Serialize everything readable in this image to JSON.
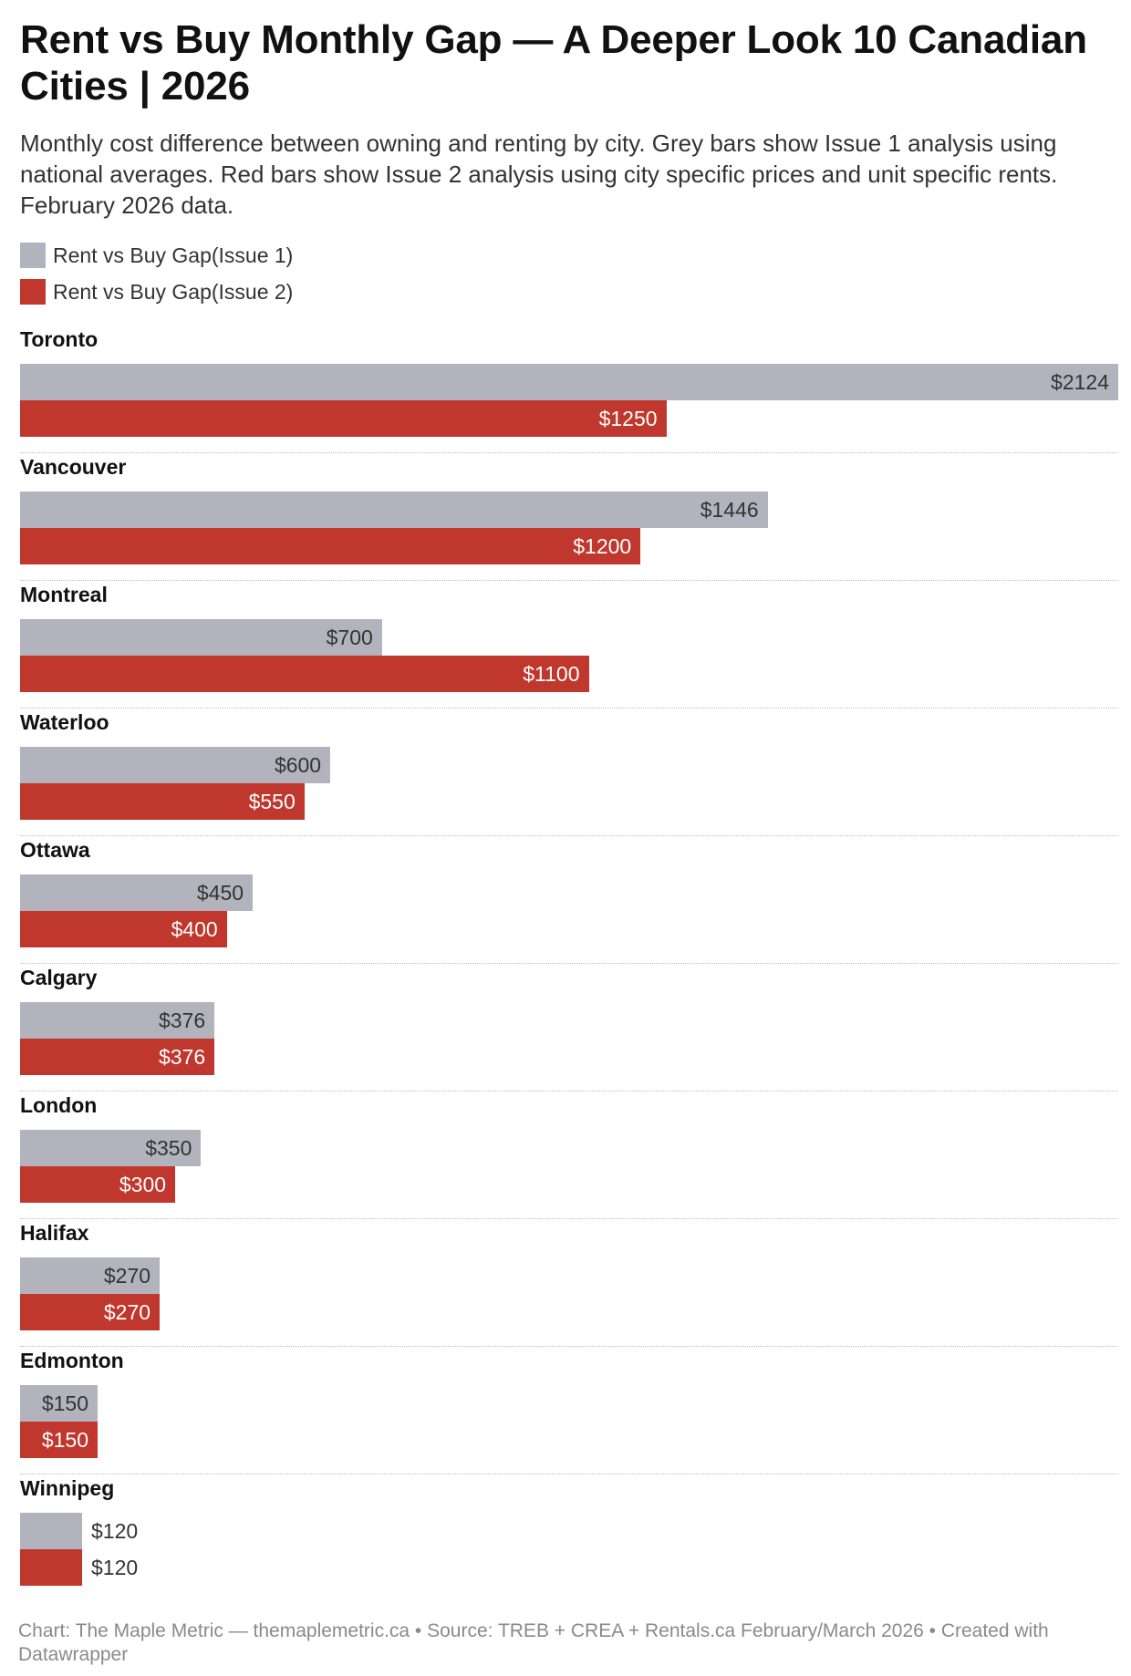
{
  "header": {
    "title": "Rent vs Buy Monthly Gap — A Deeper Look 10 Canadian Cities | 2026",
    "subtitle": "Monthly cost difference between owning and renting by city. Grey bars show Issue 1 analysis using national averages. Red bars show Issue 2 analysis using city specific prices and unit specific rents. February 2026 data."
  },
  "legend": [
    {
      "label": "Rent vs Buy Gap(Issue 1)",
      "color": "#b3b3bd"
    },
    {
      "label": "Rent vs Buy Gap(Issue 2)",
      "color": "#c0372d"
    }
  ],
  "footer": {
    "text": "Chart: The Maple Metric — themaplemetric.ca • Source: TREB + CREA + Rentals.ca February/March 2026 • Created with Datawrapper"
  },
  "chart_data": {
    "type": "bar",
    "orientation": "horizontal",
    "categories": [
      "Toronto",
      "Vancouver",
      "Montreal",
      "Waterloo",
      "Ottawa",
      "Calgary",
      "London",
      "Halifax",
      "Edmonton",
      "Winnipeg"
    ],
    "series": [
      {
        "name": "Rent vs Buy Gap(Issue 1)",
        "color": "#b3b3bd",
        "values": [
          2124,
          1446,
          700,
          600,
          450,
          376,
          350,
          270,
          150,
          120
        ]
      },
      {
        "name": "Rent vs Buy Gap(Issue 2)",
        "color": "#c0372d",
        "values": [
          1250,
          1200,
          1100,
          550,
          400,
          376,
          300,
          270,
          150,
          120
        ]
      }
    ],
    "value_prefix": "$",
    "xlim": [
      0,
      2124
    ],
    "grid": false,
    "legend_position": "top-left"
  }
}
